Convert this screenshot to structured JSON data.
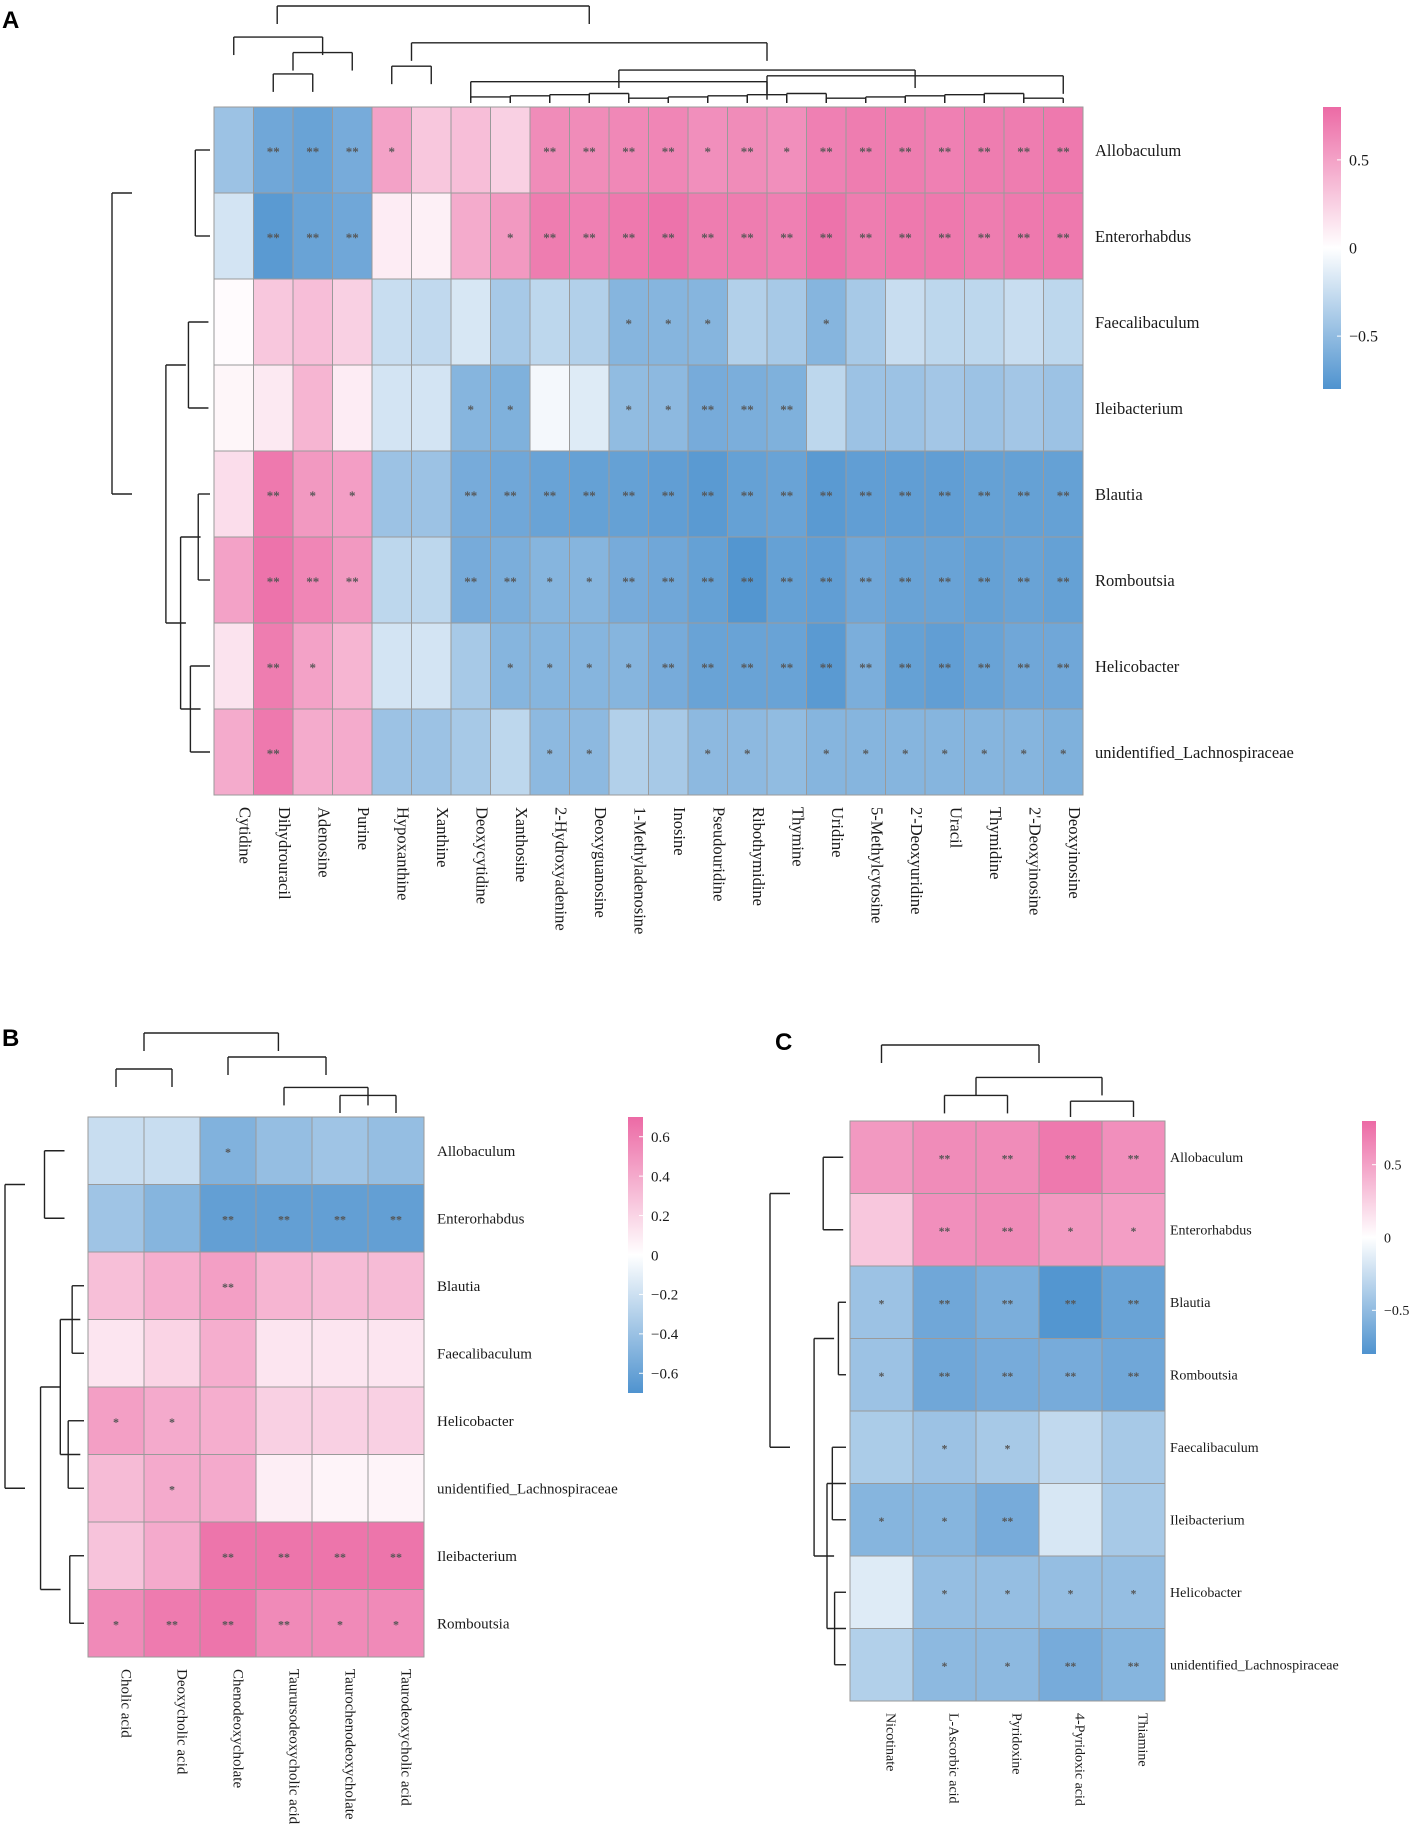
{
  "colors": {
    "low": "#4f93cf",
    "mid": "#ffffff",
    "high": "#ec6aa5",
    "grid": "#9a9a9a",
    "dendro": "#222222",
    "dendro_accent": "#8b3a2a",
    "star": "#555555"
  },
  "chart_data": [
    {
      "type": "heatmap",
      "panel": "A",
      "rows": [
        "Allobaculum",
        "Enterorhabdus",
        "Faecalibaculum",
        "Ileibacterium",
        "Blautia",
        "Romboutsia",
        "Helicobacter",
        "unidentified_Lachnospiraceae"
      ],
      "columns": [
        "Cytidine",
        "Dihydrouracil",
        "Adenosine",
        "Purine",
        "Hypoxanthine",
        "Xanthine",
        "Deoxycytidine",
        "Xanthosine",
        "2-Hydroxyadenine",
        "Deoxyguanosine",
        "1-Methyladenosine",
        "Inosine",
        "Pseudouridine",
        "Ribothymidine",
        "Thymine",
        "Uridine",
        "5-Methylcytosine",
        "2'-Deoxyuridine",
        "Uracil",
        "Thymidine",
        "2'-Deoxyinosine",
        "Deoxyinosine"
      ],
      "values": [
        [
          -0.45,
          -0.65,
          -0.68,
          -0.62,
          0.5,
          0.3,
          0.35,
          0.25,
          0.62,
          0.62,
          0.64,
          0.65,
          0.6,
          0.62,
          0.6,
          0.68,
          0.7,
          0.7,
          0.68,
          0.7,
          0.7,
          0.72
        ],
        [
          -0.2,
          -0.75,
          -0.68,
          -0.65,
          0.1,
          0.08,
          0.45,
          0.55,
          0.7,
          0.68,
          0.72,
          0.75,
          0.7,
          0.7,
          0.68,
          0.75,
          0.7,
          0.72,
          0.72,
          0.7,
          0.72,
          0.72
        ],
        [
          0.02,
          0.3,
          0.35,
          0.25,
          -0.25,
          -0.28,
          -0.18,
          -0.4,
          -0.3,
          -0.35,
          -0.55,
          -0.55,
          -0.55,
          -0.35,
          -0.4,
          -0.55,
          -0.4,
          -0.25,
          -0.3,
          -0.3,
          -0.25,
          -0.3
        ],
        [
          0.05,
          0.12,
          0.4,
          0.1,
          -0.2,
          -0.2,
          -0.55,
          -0.58,
          -0.05,
          -0.15,
          -0.5,
          -0.52,
          -0.62,
          -0.6,
          -0.58,
          -0.3,
          -0.45,
          -0.45,
          -0.42,
          -0.45,
          -0.42,
          -0.45
        ],
        [
          0.18,
          0.72,
          0.55,
          0.52,
          -0.45,
          -0.45,
          -0.62,
          -0.65,
          -0.68,
          -0.7,
          -0.7,
          -0.72,
          -0.75,
          -0.7,
          -0.68,
          -0.75,
          -0.72,
          -0.72,
          -0.72,
          -0.7,
          -0.7,
          -0.7
        ],
        [
          0.5,
          0.75,
          0.65,
          0.55,
          -0.3,
          -0.3,
          -0.62,
          -0.6,
          -0.55,
          -0.55,
          -0.62,
          -0.65,
          -0.7,
          -0.78,
          -0.7,
          -0.72,
          -0.65,
          -0.68,
          -0.68,
          -0.7,
          -0.68,
          -0.7
        ],
        [
          0.15,
          0.7,
          0.5,
          0.4,
          -0.2,
          -0.2,
          -0.4,
          -0.55,
          -0.55,
          -0.55,
          -0.55,
          -0.62,
          -0.68,
          -0.68,
          -0.68,
          -0.75,
          -0.6,
          -0.7,
          -0.72,
          -0.68,
          -0.65,
          -0.65
        ],
        [
          0.45,
          0.72,
          0.45,
          0.45,
          -0.45,
          -0.45,
          -0.4,
          -0.3,
          -0.52,
          -0.52,
          -0.35,
          -0.4,
          -0.52,
          -0.52,
          -0.5,
          -0.55,
          -0.55,
          -0.55,
          -0.55,
          -0.55,
          -0.55,
          -0.58
        ]
      ],
      "stars": [
        [
          "",
          "**",
          "**",
          "**",
          "*",
          "",
          "",
          "",
          "**",
          "**",
          "**",
          "**",
          "*",
          "**",
          "*",
          "**",
          "**",
          "**",
          "**",
          "**",
          "**",
          "**"
        ],
        [
          "",
          "**",
          "**",
          "**",
          "",
          "",
          "",
          "*",
          "**",
          "**",
          "**",
          "**",
          "**",
          "**",
          "**",
          "**",
          "**",
          "**",
          "**",
          "**",
          "**",
          "**"
        ],
        [
          "",
          "",
          "",
          "",
          "",
          "",
          "",
          "",
          "",
          "",
          "*",
          "*",
          "*",
          "",
          "",
          "*",
          "",
          "",
          "",
          "",
          "",
          ""
        ],
        [
          "",
          "",
          "",
          "",
          "",
          "",
          "*",
          "*",
          "",
          "",
          "*",
          "*",
          "**",
          "**",
          "**",
          "",
          "",
          "",
          "",
          "",
          "",
          ""
        ],
        [
          "",
          "**",
          "*",
          "*",
          "",
          "",
          "**",
          "**",
          "**",
          "**",
          "**",
          "**",
          "**",
          "**",
          "**",
          "**",
          "**",
          "**",
          "**",
          "**",
          "**",
          "**"
        ],
        [
          "",
          "**",
          "**",
          "**",
          "",
          "",
          "**",
          "**",
          "*",
          "*",
          "**",
          "**",
          "**",
          "**",
          "**",
          "**",
          "**",
          "**",
          "**",
          "**",
          "**",
          "**"
        ],
        [
          "",
          "**",
          "*",
          "",
          "",
          "",
          "",
          "*",
          "*",
          "*",
          "*",
          "**",
          "**",
          "**",
          "**",
          "**",
          "**",
          "**",
          "**",
          "**",
          "**",
          "**"
        ],
        [
          "",
          "**",
          "",
          "",
          "",
          "",
          "",
          "",
          "*",
          "*",
          "",
          "",
          "*",
          "*",
          "",
          "*",
          "*",
          "*",
          "*",
          "*",
          "*",
          "*"
        ]
      ],
      "legend": {
        "ticks": [
          0.5,
          0,
          -0.5
        ],
        "tick_labels": [
          "0.5",
          "0",
          "−0.5"
        ],
        "range": [
          -0.8,
          0.8
        ]
      }
    },
    {
      "type": "heatmap",
      "panel": "B",
      "rows": [
        "Allobaculum",
        "Enterorhabdus",
        "Blautia",
        "Faecalibaculum",
        "Helicobacter",
        "unidentified_Lachnospiraceae",
        "Ileibacterium",
        "Romboutsia"
      ],
      "columns": [
        "Cholic acid",
        "Deoxycholic acid",
        "Chenodeoxycholate",
        "Taurursodeoxycholic acid",
        "Taurochenodeoxycholate",
        "Taurodeoxycholic acid"
      ],
      "values": [
        [
          -0.22,
          -0.22,
          -0.5,
          -0.42,
          -0.38,
          -0.42
        ],
        [
          -0.38,
          -0.48,
          -0.62,
          -0.62,
          -0.62,
          -0.62
        ],
        [
          0.3,
          0.38,
          0.45,
          0.35,
          0.32,
          0.32
        ],
        [
          0.12,
          0.2,
          0.38,
          0.12,
          0.12,
          0.12
        ],
        [
          0.45,
          0.4,
          0.38,
          0.22,
          0.22,
          0.22
        ],
        [
          0.32,
          0.4,
          0.4,
          0.08,
          0.05,
          0.05
        ],
        [
          0.28,
          0.4,
          0.65,
          0.65,
          0.65,
          0.65
        ],
        [
          0.55,
          0.62,
          0.65,
          0.55,
          0.55,
          0.55
        ]
      ],
      "stars": [
        [
          "",
          "",
          "*",
          "",
          "",
          ""
        ],
        [
          "",
          "",
          "**",
          "**",
          "**",
          "**"
        ],
        [
          "",
          "",
          "**",
          "",
          "",
          ""
        ],
        [
          "",
          "",
          "",
          "",
          "",
          ""
        ],
        [
          "*",
          "*",
          "",
          "",
          "",
          ""
        ],
        [
          "",
          "*",
          "",
          "",
          "",
          ""
        ],
        [
          "",
          "",
          "**",
          "**",
          "**",
          "**"
        ],
        [
          "*",
          "**",
          "**",
          "**",
          "*",
          "*"
        ]
      ],
      "legend": {
        "ticks": [
          0.6,
          0.4,
          0.2,
          0,
          -0.2,
          -0.4,
          -0.6
        ],
        "tick_labels": [
          "0.6",
          "0.4",
          "0.2",
          "0",
          "−0.2",
          "−0.4",
          "−0.6"
        ],
        "range": [
          -0.7,
          0.7
        ]
      }
    },
    {
      "type": "heatmap",
      "panel": "C",
      "rows": [
        "Allobaculum",
        "Enterorhabdus",
        "Blautia",
        "Romboutsia",
        "Faecalibaculum",
        "Ileibacterium",
        "Helicobacter",
        "unidentified_Lachnospiraceae"
      ],
      "columns": [
        "Nicotinate",
        "L-Ascorbic acid",
        "Pyridoxine",
        "4-Pyridoxic acid",
        "Thiamine"
      ],
      "values": [
        [
          0.55,
          0.62,
          0.62,
          0.72,
          0.6
        ],
        [
          0.3,
          0.6,
          0.62,
          0.55,
          0.52
        ],
        [
          -0.45,
          -0.65,
          -0.6,
          -0.78,
          -0.68
        ],
        [
          -0.45,
          -0.65,
          -0.62,
          -0.62,
          -0.65
        ],
        [
          -0.38,
          -0.45,
          -0.4,
          -0.28,
          -0.4
        ],
        [
          -0.55,
          -0.55,
          -0.62,
          -0.18,
          -0.4
        ],
        [
          -0.15,
          -0.48,
          -0.48,
          -0.48,
          -0.48
        ],
        [
          -0.35,
          -0.52,
          -0.52,
          -0.62,
          -0.55
        ]
      ],
      "stars": [
        [
          "",
          "**",
          "**",
          "**",
          "**"
        ],
        [
          "",
          "**",
          "**",
          "*",
          "*"
        ],
        [
          "*",
          "**",
          "**",
          "**",
          "**"
        ],
        [
          "*",
          "**",
          "**",
          "**",
          "**"
        ],
        [
          "",
          "*",
          "*",
          "",
          ""
        ],
        [
          "*",
          "*",
          "**",
          "",
          ""
        ],
        [
          "",
          "*",
          "*",
          "*",
          "*"
        ],
        [
          "",
          "*",
          "*",
          "**",
          "**"
        ]
      ],
      "legend": {
        "ticks": [
          0.5,
          0,
          -0.5
        ],
        "tick_labels": [
          "0.5",
          "0",
          "−0.5"
        ],
        "range": [
          -0.8,
          0.8
        ]
      }
    }
  ]
}
